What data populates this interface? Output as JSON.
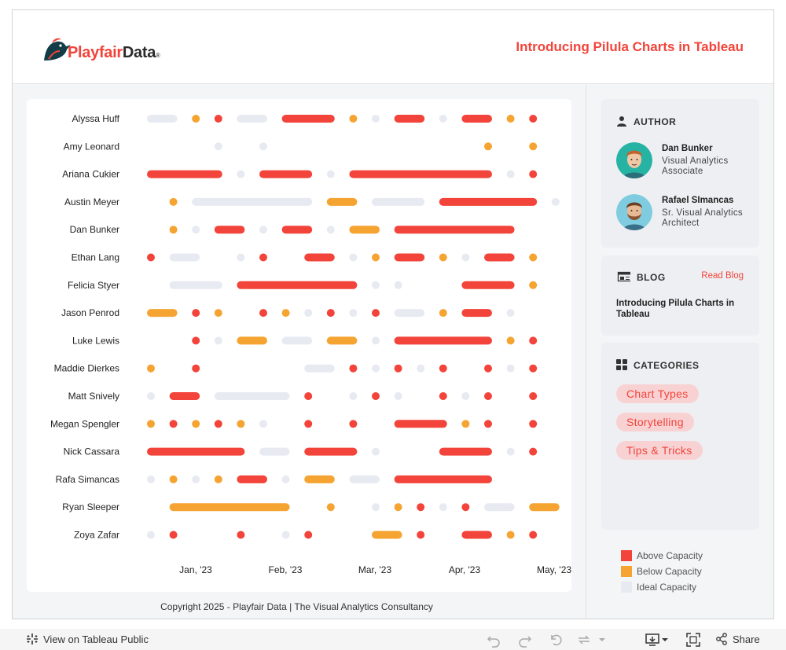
{
  "header": {
    "logo_text_1": "Playfair",
    "logo_text_2": "Data",
    "logo_mark": "®",
    "title": "Introducing Pilula Charts in Tableau"
  },
  "colors": {
    "above": "#f2443a",
    "below": "#f5a431",
    "ideal": "#e8eaf2",
    "accent": "#f2443a"
  },
  "chart_data": {
    "type": "pilula",
    "title": "Introducing Pilula Charts in Tableau",
    "x_ticks": [
      "Jan, '23",
      "Feb, '23",
      "Mar, '23",
      "Apr, '23",
      "May, '23"
    ],
    "x_range_weeks": [
      -1,
      18.5
    ],
    "legend": [
      {
        "key": "above",
        "label": "Above Capacity"
      },
      {
        "key": "below",
        "label": "Below Capacity"
      },
      {
        "key": "ideal",
        "label": "Ideal Capacity"
      }
    ],
    "series": [
      {
        "name": "Alyssa Huff",
        "segments": [
          [
            0,
            1,
            "ideal"
          ],
          [
            2,
            2,
            "below"
          ],
          [
            3,
            3,
            "above"
          ],
          [
            4,
            5,
            "ideal"
          ],
          [
            6,
            8,
            "above"
          ],
          [
            9,
            9,
            "below"
          ],
          [
            10,
            10,
            "ideal"
          ],
          [
            11,
            12,
            "above"
          ],
          [
            13,
            13,
            "ideal"
          ],
          [
            14,
            15,
            "above"
          ],
          [
            16,
            16,
            "below"
          ],
          [
            17,
            17,
            "above"
          ]
        ]
      },
      {
        "name": "Amy Leonard",
        "segments": [
          [
            3,
            3,
            "ideal"
          ],
          [
            5,
            5,
            "ideal"
          ],
          [
            15,
            15,
            "below"
          ],
          [
            17,
            17,
            "below"
          ]
        ]
      },
      {
        "name": "Ariana Cukier",
        "segments": [
          [
            0,
            3,
            "above"
          ],
          [
            4,
            4,
            "ideal"
          ],
          [
            5,
            7,
            "above"
          ],
          [
            8,
            8,
            "ideal"
          ],
          [
            9,
            15,
            "above"
          ],
          [
            16,
            16,
            "ideal"
          ],
          [
            17,
            17,
            "above"
          ]
        ]
      },
      {
        "name": "Austin Meyer",
        "segments": [
          [
            1,
            1,
            "below"
          ],
          [
            2,
            7,
            "ideal"
          ],
          [
            8,
            9,
            "below"
          ],
          [
            10,
            12,
            "ideal"
          ],
          [
            13,
            17,
            "above"
          ],
          [
            18,
            18,
            "ideal"
          ]
        ]
      },
      {
        "name": "Dan Bunker",
        "segments": [
          [
            1,
            1,
            "below"
          ],
          [
            2,
            2,
            "ideal"
          ],
          [
            3,
            4,
            "above"
          ],
          [
            5,
            5,
            "ideal"
          ],
          [
            6,
            7,
            "above"
          ],
          [
            8,
            8,
            "ideal"
          ],
          [
            9,
            10,
            "below"
          ],
          [
            11,
            16,
            "above"
          ]
        ]
      },
      {
        "name": "Ethan Lang",
        "segments": [
          [
            0,
            0,
            "above"
          ],
          [
            1,
            2,
            "ideal"
          ],
          [
            4,
            4,
            "ideal"
          ],
          [
            5,
            5,
            "above"
          ],
          [
            7,
            8,
            "above"
          ],
          [
            9,
            9,
            "ideal"
          ],
          [
            10,
            10,
            "below"
          ],
          [
            11,
            12,
            "above"
          ],
          [
            13,
            13,
            "below"
          ],
          [
            14,
            14,
            "ideal"
          ],
          [
            15,
            16,
            "above"
          ],
          [
            17,
            17,
            "below"
          ]
        ]
      },
      {
        "name": "Felicia Styer",
        "segments": [
          [
            1,
            3,
            "ideal"
          ],
          [
            4,
            9,
            "above"
          ],
          [
            10,
            10,
            "ideal"
          ],
          [
            11,
            11,
            "ideal"
          ],
          [
            14,
            16,
            "above"
          ],
          [
            17,
            17,
            "below"
          ]
        ]
      },
      {
        "name": "Jason Penrod",
        "segments": [
          [
            0,
            1,
            "below"
          ],
          [
            2,
            2,
            "above"
          ],
          [
            3,
            3,
            "below"
          ],
          [
            5,
            5,
            "above"
          ],
          [
            6,
            6,
            "below"
          ],
          [
            7,
            7,
            "ideal"
          ],
          [
            8,
            8,
            "above"
          ],
          [
            9,
            9,
            "ideal"
          ],
          [
            10,
            10,
            "above"
          ],
          [
            11,
            12,
            "ideal"
          ],
          [
            13,
            13,
            "below"
          ],
          [
            14,
            15,
            "above"
          ],
          [
            16,
            16,
            "ideal"
          ]
        ]
      },
      {
        "name": "Luke Lewis",
        "segments": [
          [
            2,
            2,
            "above"
          ],
          [
            3,
            3,
            "ideal"
          ],
          [
            4,
            5,
            "below"
          ],
          [
            6,
            7,
            "ideal"
          ],
          [
            8,
            9,
            "below"
          ],
          [
            10,
            10,
            "ideal"
          ],
          [
            11,
            15,
            "above"
          ],
          [
            16,
            16,
            "below"
          ],
          [
            17,
            17,
            "above"
          ]
        ]
      },
      {
        "name": "Maddie Dierkes",
        "segments": [
          [
            0,
            0,
            "below"
          ],
          [
            2,
            2,
            "above"
          ],
          [
            7,
            8,
            "ideal"
          ],
          [
            9,
            9,
            "above"
          ],
          [
            10,
            10,
            "ideal"
          ],
          [
            11,
            11,
            "above"
          ],
          [
            12,
            12,
            "ideal"
          ],
          [
            13,
            13,
            "above"
          ],
          [
            15,
            15,
            "above"
          ],
          [
            16,
            16,
            "ideal"
          ],
          [
            17,
            17,
            "above"
          ]
        ]
      },
      {
        "name": "Matt Snively",
        "segments": [
          [
            0,
            0,
            "ideal"
          ],
          [
            1,
            2,
            "above"
          ],
          [
            3,
            6,
            "ideal"
          ],
          [
            7,
            7,
            "above"
          ],
          [
            9,
            9,
            "ideal"
          ],
          [
            10,
            10,
            "above"
          ],
          [
            11,
            11,
            "ideal"
          ],
          [
            13,
            13,
            "above"
          ],
          [
            14,
            14,
            "ideal"
          ],
          [
            15,
            15,
            "above"
          ],
          [
            17,
            17,
            "above"
          ]
        ]
      },
      {
        "name": "Megan Spengler",
        "segments": [
          [
            0,
            0,
            "below"
          ],
          [
            1,
            1,
            "above"
          ],
          [
            2,
            2,
            "below"
          ],
          [
            3,
            3,
            "above"
          ],
          [
            4,
            4,
            "below"
          ],
          [
            5,
            5,
            "ideal"
          ],
          [
            7,
            7,
            "above"
          ],
          [
            9,
            9,
            "above"
          ],
          [
            11,
            13,
            "above"
          ],
          [
            14,
            14,
            "below"
          ],
          [
            15,
            15,
            "above"
          ],
          [
            17,
            17,
            "above"
          ]
        ]
      },
      {
        "name": "Nick Cassara",
        "segments": [
          [
            0,
            4,
            "above"
          ],
          [
            5,
            6,
            "ideal"
          ],
          [
            7,
            9,
            "above"
          ],
          [
            10,
            10,
            "ideal"
          ],
          [
            13,
            15,
            "above"
          ],
          [
            16,
            16,
            "ideal"
          ],
          [
            17,
            17,
            "above"
          ]
        ]
      },
      {
        "name": "Rafa Simancas",
        "segments": [
          [
            0,
            0,
            "ideal"
          ],
          [
            1,
            1,
            "below"
          ],
          [
            2,
            2,
            "ideal"
          ],
          [
            3,
            3,
            "below"
          ],
          [
            4,
            5,
            "above"
          ],
          [
            6,
            6,
            "ideal"
          ],
          [
            7,
            8,
            "below"
          ],
          [
            9,
            10,
            "ideal"
          ],
          [
            11,
            15,
            "above"
          ]
        ]
      },
      {
        "name": "Ryan Sleeper",
        "segments": [
          [
            1,
            6,
            "below"
          ],
          [
            8,
            8,
            "below"
          ],
          [
            10,
            10,
            "ideal"
          ],
          [
            11,
            11,
            "below"
          ],
          [
            12,
            12,
            "above"
          ],
          [
            13,
            13,
            "ideal"
          ],
          [
            14,
            14,
            "above"
          ],
          [
            15,
            16,
            "ideal"
          ],
          [
            17,
            18,
            "below"
          ]
        ]
      },
      {
        "name": "Zoya Zafar",
        "segments": [
          [
            0,
            0,
            "ideal"
          ],
          [
            1,
            1,
            "above"
          ],
          [
            4,
            4,
            "above"
          ],
          [
            6,
            6,
            "ideal"
          ],
          [
            7,
            7,
            "above"
          ],
          [
            10,
            11,
            "below"
          ],
          [
            12,
            12,
            "above"
          ],
          [
            14,
            15,
            "above"
          ],
          [
            16,
            16,
            "below"
          ],
          [
            17,
            17,
            "above"
          ]
        ]
      }
    ]
  },
  "footer": {
    "copyright": "Copyright 2025 - Playfair Data | The Visual Analytics Consultancy"
  },
  "sidebar": {
    "author_heading": "AUTHOR",
    "authors": [
      {
        "name": "Dan Bunker",
        "role": "Visual Analytics Associate"
      },
      {
        "name": "Rafael SImancas",
        "role": "Sr. Visual Analytics Architect"
      }
    ],
    "blog_heading": "BLOG",
    "read_blog": "Read Blog",
    "blog_title": "Introducing Pilula Charts in Tableau",
    "categories_heading": "CATEGORIES",
    "categories": [
      "Chart Types",
      "Storytelling",
      "Tips & Tricks"
    ]
  },
  "legend": [
    "Above Capacity",
    "Below Capacity",
    "Ideal Capacity"
  ],
  "toolbar": {
    "view_public": "View on Tableau Public",
    "share": "Share",
    "icons": [
      "undo-icon",
      "redo-icon",
      "revert-icon",
      "refresh-icon",
      "download-icon",
      "fullscreen-icon",
      "share-icon"
    ]
  }
}
